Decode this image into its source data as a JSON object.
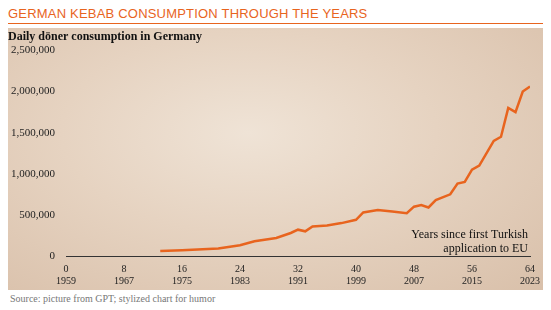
{
  "chart_data": {
    "type": "line",
    "title": "GERMAN KEBAB CONSUMPTION THROUGH THE YEARS",
    "y_label": "Daily döner consumption in Germany",
    "x_label": "Years since first Turkish application to EU",
    "source": "Source: picture from GPT; stylized chart for humor",
    "x": [
      13,
      16,
      21,
      24,
      26,
      29,
      31,
      32,
      33,
      34,
      36,
      38,
      40,
      41,
      43,
      45,
      47,
      48,
      49,
      50,
      51,
      53,
      54,
      55,
      56,
      57,
      59,
      60,
      61,
      62,
      63,
      64
    ],
    "values": [
      60000,
      70000,
      90000,
      130000,
      180000,
      220000,
      280000,
      320000,
      300000,
      360000,
      370000,
      400000,
      440000,
      530000,
      560000,
      540000,
      520000,
      600000,
      620000,
      590000,
      680000,
      750000,
      880000,
      900000,
      1050000,
      1100000,
      1400000,
      1450000,
      1800000,
      1750000,
      2000000,
      2060000
    ],
    "color": "#e8641e",
    "xlim": [
      0,
      64
    ],
    "xticks": [
      {
        "value": 0,
        "label": [
          "0",
          "1959"
        ]
      },
      {
        "value": 8,
        "label": [
          "8",
          "1967"
        ]
      },
      {
        "value": 16,
        "label": [
          "16",
          "1975"
        ]
      },
      {
        "value": 24,
        "label": [
          "24",
          "1983"
        ]
      },
      {
        "value": 32,
        "label": [
          "32",
          "1991"
        ]
      },
      {
        "value": 40,
        "label": [
          "40",
          "1999"
        ]
      },
      {
        "value": 48,
        "label": [
          "48",
          "2007"
        ]
      },
      {
        "value": 56,
        "label": [
          "56",
          "2015"
        ]
      },
      {
        "value": 64,
        "label": [
          "64",
          "2023"
        ]
      }
    ],
    "ylim": [
      0,
      2500000
    ],
    "yticks": [
      0,
      {
        "value": 500000,
        "label": "500,000"
      },
      {
        "value": 1000000,
        "label": "1,000,000"
      },
      {
        "value": 1500000,
        "label": "1,500,000"
      },
      {
        "value": 2000000,
        "label": "2,000,000"
      },
      {
        "value": 2500000,
        "label": "2,500,000"
      }
    ],
    "grid": false
  }
}
